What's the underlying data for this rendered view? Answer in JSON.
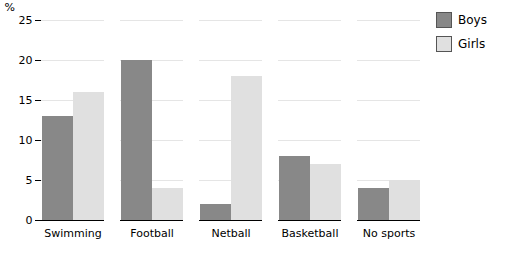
{
  "chart_data": {
    "type": "bar",
    "categories": [
      "Swimming",
      "Football",
      "Netball",
      "Basketball",
      "No sports"
    ],
    "series": [
      {
        "name": "Boys",
        "color": "#888888",
        "values": [
          13,
          20,
          2,
          8,
          4
        ]
      },
      {
        "name": "Girls",
        "color": "#e0e0e0",
        "values": [
          16,
          4,
          18,
          7,
          5
        ]
      }
    ],
    "ylabel": "%",
    "ylim": [
      0,
      25
    ],
    "yticks": [
      0,
      5,
      10,
      15,
      20,
      25
    ],
    "grid": true,
    "legend": "upper right"
  }
}
